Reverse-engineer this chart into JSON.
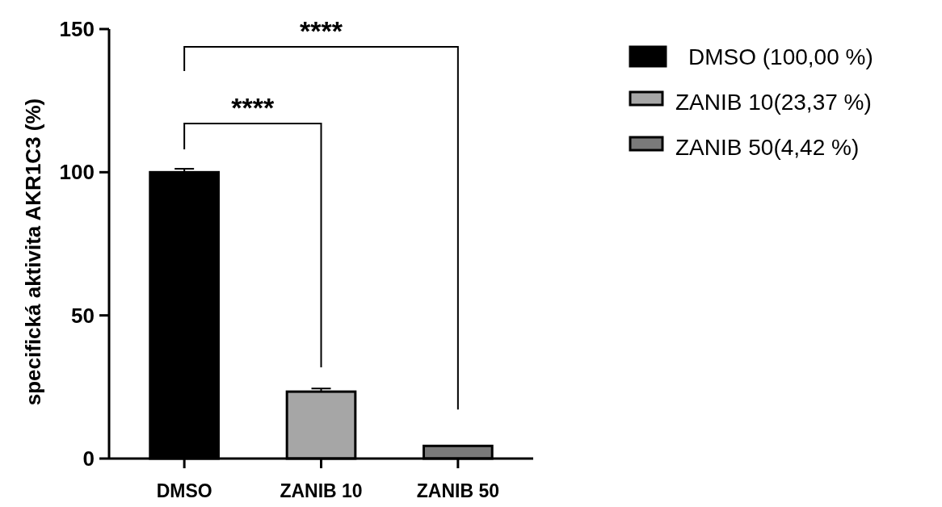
{
  "chart_data": {
    "type": "bar",
    "ylabel": "specifická aktivita AKR1C3 (%)",
    "categories": [
      "DMSO",
      "ZANIB 10",
      "ZANIB 50"
    ],
    "series": [
      {
        "name": "DMSO (100,00 %)",
        "color": "#000000",
        "values": [
          100,
          null,
          null
        ],
        "errors": [
          1.2,
          null,
          null
        ]
      },
      {
        "name": "ZANIB 10(23,37 %)",
        "color": "#a6a6a6",
        "values": [
          null,
          23.37,
          null
        ],
        "errors": [
          null,
          1.1,
          null
        ]
      },
      {
        "name": "ZANIB 50(4,42 %)",
        "color": "#7a7a7a",
        "values": [
          null,
          null,
          4.42
        ],
        "errors": [
          null,
          null,
          null
        ]
      }
    ],
    "ylim": [
      0,
      150
    ],
    "yticks": [
      0,
      50,
      100,
      150
    ],
    "grid": false,
    "legend": "top right",
    "annotations": [
      "****",
      "****"
    ]
  }
}
